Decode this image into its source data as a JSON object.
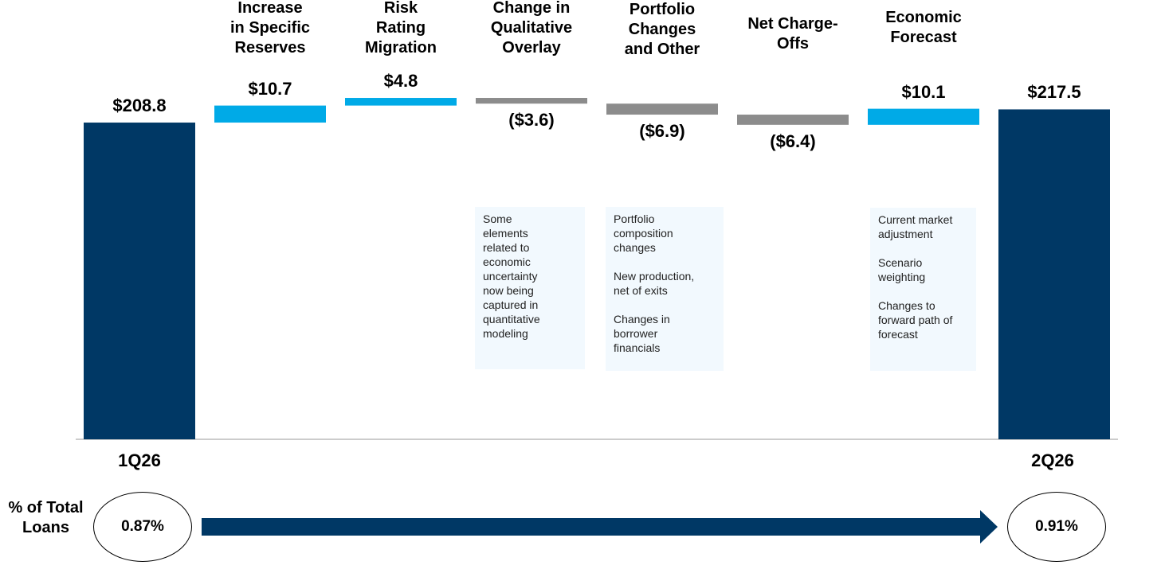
{
  "chart_data": {
    "type": "bar",
    "subtype": "waterfall",
    "unit": "$",
    "categories": [
      "1Q26",
      "Increase in Specific Reserves",
      "Risk Rating Migration",
      "Change in Qualitative Overlay",
      "Portfolio Changes and Other",
      "Net Charge-Offs",
      "Economic Forecast",
      "2Q26"
    ],
    "steps": [
      {
        "category": "1Q26",
        "kind": "total",
        "value": 208.8,
        "label": "$208.8"
      },
      {
        "category": "Increase\nin Specific\nReserves",
        "kind": "increase",
        "value": 10.7,
        "label": "$10.7"
      },
      {
        "category": "Risk\nRating\nMigration",
        "kind": "increase",
        "value": 4.8,
        "label": "$4.8"
      },
      {
        "category": "Change in\nQualitative\nOverlay",
        "kind": "decrease",
        "value": -3.6,
        "label": "($3.6)"
      },
      {
        "category": "Portfolio\nChanges\nand Other",
        "kind": "decrease",
        "value": -6.9,
        "label": "($6.9)"
      },
      {
        "category": "Net Charge-\nOffs",
        "kind": "decrease",
        "value": -6.4,
        "label": "($6.4)"
      },
      {
        "category": "Economic\nForecast",
        "kind": "increase",
        "value": 10.1,
        "label": "$10.1"
      },
      {
        "category": "2Q26",
        "kind": "total",
        "value": 217.5,
        "label": "$217.5"
      }
    ],
    "start_label": "1Q26",
    "end_label": "2Q26",
    "notes": {
      "qualitative": "Some\nelements\nrelated to\neconomic\nuncertainty\nnow being\ncaptured in\nquantitative\nmodeling",
      "portfolio": "Portfolio\ncomposition\nchanges\n\nNew production,\nnet of exits\n\nChanges in\nborrower\nfinancials",
      "economic": "Current market\nadjustment\n\nScenario\nweighting\n\nChanges to\nforward path of\nforecast"
    },
    "ratio": {
      "title": "% of Total\nLoans",
      "start": "0.87%",
      "end": "0.91%"
    },
    "colors": {
      "total": "#003865",
      "increase": "#00aae7",
      "decrease": "#8c8c8c",
      "arrow": "#003865",
      "baseline": "#999999"
    }
  }
}
